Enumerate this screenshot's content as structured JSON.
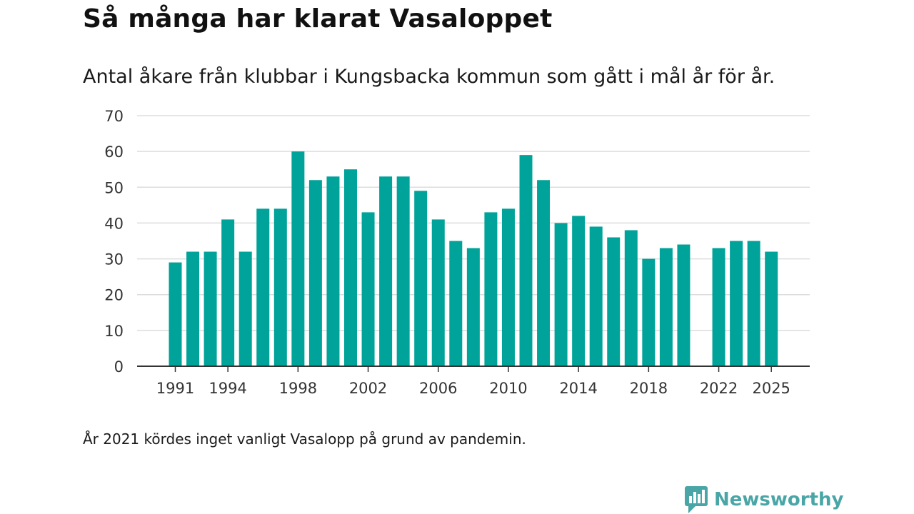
{
  "header": {
    "title": "Så många har klarat Vasaloppet",
    "subtitle": "Antal åkare från klubbar i Kungsbacka kommun som gått i mål år för år."
  },
  "footer": {
    "note": "År 2021 kördes inget vanligt Vasalopp på grund av pandemin.",
    "brand": "Newsworthy"
  },
  "colors": {
    "bar": "#00a39a",
    "grid": "#dddddd",
    "axis": "#333333",
    "brand": "#4aa6a6"
  },
  "chart_data": {
    "type": "bar",
    "title": "Så många har klarat Vasaloppet",
    "xlabel": "",
    "ylabel": "",
    "ylim": [
      0,
      70
    ],
    "yticks": [
      0,
      10,
      20,
      30,
      40,
      50,
      60,
      70
    ],
    "xtick_labels": [
      "1991",
      "1994",
      "1998",
      "2002",
      "2006",
      "2010",
      "2014",
      "2018",
      "2022",
      "2025"
    ],
    "categories": [
      "1991",
      "1992",
      "1993",
      "1994",
      "1995",
      "1996",
      "1997",
      "1998",
      "1999",
      "2000",
      "2001",
      "2002",
      "2003",
      "2004",
      "2005",
      "2006",
      "2007",
      "2008",
      "2009",
      "2010",
      "2011",
      "2012",
      "2013",
      "2014",
      "2015",
      "2016",
      "2017",
      "2018",
      "2019",
      "2020",
      "2021",
      "2022",
      "2023",
      "2024",
      "2025"
    ],
    "values": [
      29,
      32,
      32,
      41,
      32,
      44,
      44,
      60,
      52,
      53,
      55,
      43,
      53,
      53,
      49,
      41,
      35,
      33,
      43,
      44,
      59,
      52,
      40,
      42,
      39,
      36,
      38,
      30,
      33,
      34,
      null,
      33,
      35,
      35,
      32
    ],
    "grid": true,
    "legend": "none"
  }
}
